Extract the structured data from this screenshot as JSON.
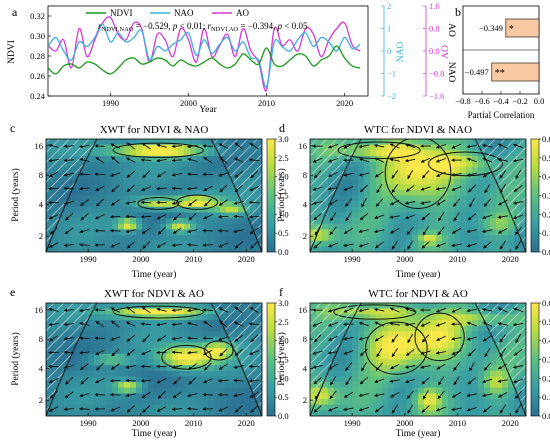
{
  "chart_data": [
    {
      "panel": "a",
      "type": "line",
      "xlabel": "Year",
      "left_ylabel": "NDVI",
      "right_ylabels": [
        "NAO",
        "AO"
      ],
      "legend": [
        "NDVI",
        "NAO",
        "AO"
      ],
      "annotation": "r_NDVI,NAO = −0.529, p < 0.01; r_NDVI,AO = −0.394, p < 0.05",
      "annotation_parts": {
        "r1": "r",
        "sub1": "NDVI,NAO",
        "text1": " = −0.529, ",
        "p1": "p",
        "text2": " < 0.01; ",
        "r2": "r",
        "sub2": "NDVI,AO",
        "text3": " = −0.394, ",
        "p2": "p",
        "text4": " < 0.05"
      },
      "xlim": [
        1982,
        2023
      ],
      "ylim_ndvi": [
        0.24,
        0.33
      ],
      "ylim_nao": [
        -2,
        2
      ],
      "ylim_ao": [
        -1.6,
        1.6
      ],
      "x_ticks": [
        "1990",
        "2000",
        "2010",
        "2020"
      ],
      "ndvi_ticks": [
        "0.24",
        "0.26",
        "0.28",
        "0.30",
        "0.32"
      ],
      "nao_ticks": [
        "−2",
        "−1",
        "0",
        "1",
        "2"
      ],
      "ao_ticks": [
        "−1.6",
        "−0.8",
        "0.0",
        "0.8",
        "1.6"
      ],
      "colors": {
        "NDVI": "#1a9a1a",
        "NAO": "#3cb0e0",
        "AO": "#d23ad2"
      },
      "years": [
        1982,
        1983,
        1984,
        1985,
        1986,
        1987,
        1988,
        1989,
        1990,
        1991,
        1992,
        1993,
        1994,
        1995,
        1996,
        1997,
        1998,
        1999,
        2000,
        2001,
        2002,
        2003,
        2004,
        2005,
        2006,
        2007,
        2008,
        2009,
        2010,
        2011,
        2012,
        2013,
        2014,
        2015,
        2016,
        2017,
        2018,
        2019,
        2020,
        2021,
        2022
      ],
      "NDVI": [
        0.268,
        0.262,
        0.27,
        0.272,
        0.268,
        0.274,
        0.272,
        0.266,
        0.262,
        0.268,
        0.276,
        0.278,
        0.272,
        0.274,
        0.278,
        0.276,
        0.27,
        0.276,
        0.272,
        0.27,
        0.274,
        0.278,
        0.272,
        0.268,
        0.272,
        0.282,
        0.276,
        0.272,
        0.288,
        0.272,
        0.27,
        0.276,
        0.282,
        0.28,
        0.27,
        0.276,
        0.28,
        0.29,
        0.278,
        0.27,
        0.268
      ],
      "NAO": [
        0.2,
        0.6,
        0.0,
        -0.4,
        0.4,
        0.2,
        0.6,
        1.2,
        0.4,
        0.8,
        0.4,
        0.6,
        0.9,
        -0.4,
        0.2,
        0.0,
        0.3,
        0.5,
        0.8,
        -0.2,
        0.5,
        -0.1,
        0.3,
        0.6,
        0.0,
        0.4,
        -0.3,
        -0.4,
        -1.6,
        0.4,
        0.2,
        0.0,
        0.5,
        0.8,
        0.2,
        0.6,
        0.4,
        0.0,
        0.6,
        0.1,
        0.3
      ],
      "AO": [
        0.2,
        0.0,
        0.4,
        -0.6,
        0.8,
        -0.2,
        0.4,
        1.0,
        1.2,
        0.6,
        0.4,
        1.0,
        0.8,
        -0.4,
        0.6,
        0.4,
        -0.2,
        0.8,
        0.4,
        -0.4,
        0.8,
        -0.2,
        0.2,
        0.6,
        -0.2,
        0.8,
        0.0,
        -0.4,
        -1.4,
        0.8,
        0.2,
        0.4,
        0.0,
        0.8,
        0.6,
        -0.2,
        0.4,
        0.8,
        1.0,
        0.2,
        0.0
      ]
    },
    {
      "panel": "b",
      "type": "bar",
      "orientation": "horizontal",
      "xlabel": "Partial Correlation",
      "categories": [
        "AO",
        "NAO"
      ],
      "values": [
        -0.349,
        -0.497
      ],
      "value_labels": [
        "−0.349",
        "−0.497"
      ],
      "significance": [
        "*",
        "**"
      ],
      "xlim": [
        -0.8,
        0.0
      ],
      "x_ticks": [
        "−0.8",
        "−0.6",
        "−0.4",
        "−0.2",
        "0.0"
      ],
      "bar_color": "#f9c9a4"
    },
    {
      "panel": "c",
      "type": "heatmap",
      "title": "XWT for NDVI & NAO",
      "xlabel": "Time (year)",
      "ylabel": "Period (years)",
      "x_ticks": [
        "1990",
        "2000",
        "2010",
        "2020"
      ],
      "y_ticks": [
        "2",
        "4",
        "8",
        "16"
      ],
      "colorbar_ticks": [
        "0.0",
        "0.5",
        "1.0",
        "1.5",
        "2.0",
        "2.5",
        "3.0"
      ],
      "colorbar_range": [
        0,
        3
      ]
    },
    {
      "panel": "d",
      "type": "heatmap",
      "title": "WTC for NDVI & NAO",
      "xlabel": "Time (year)",
      "ylabel": "Period (years)",
      "x_ticks": [
        "1990",
        "2000",
        "2010",
        "2020"
      ],
      "y_ticks": [
        "2",
        "4",
        "8",
        "16"
      ],
      "colorbar_ticks": [
        "0.0",
        "0.1",
        "0.2",
        "0.3",
        "0.4",
        "0.5",
        "0.6"
      ],
      "colorbar_range": [
        0,
        0.6
      ]
    },
    {
      "panel": "e",
      "type": "heatmap",
      "title": "XWT for NDVI & AO",
      "xlabel": "Time (year)",
      "ylabel": "Period (years)",
      "x_ticks": [
        "1990",
        "2000",
        "2010",
        "2020"
      ],
      "y_ticks": [
        "2",
        "4",
        "8",
        "16"
      ],
      "colorbar_ticks": [
        "0.0",
        "0.5",
        "1.0",
        "1.5",
        "2.0",
        "2.5",
        "3.0"
      ],
      "colorbar_range": [
        0,
        3
      ]
    },
    {
      "panel": "f",
      "type": "heatmap",
      "title": "WTC for NDVI & AO",
      "xlabel": "Time (year)",
      "ylabel": "Period (years)",
      "x_ticks": [
        "1990",
        "2000",
        "2010",
        "2020"
      ],
      "y_ticks": [
        "2",
        "4",
        "8",
        "16"
      ],
      "colorbar_ticks": [
        "0.0",
        "0.1",
        "0.2",
        "0.3",
        "0.4",
        "0.5",
        "0.6"
      ],
      "colorbar_range": [
        0,
        0.6
      ]
    }
  ]
}
